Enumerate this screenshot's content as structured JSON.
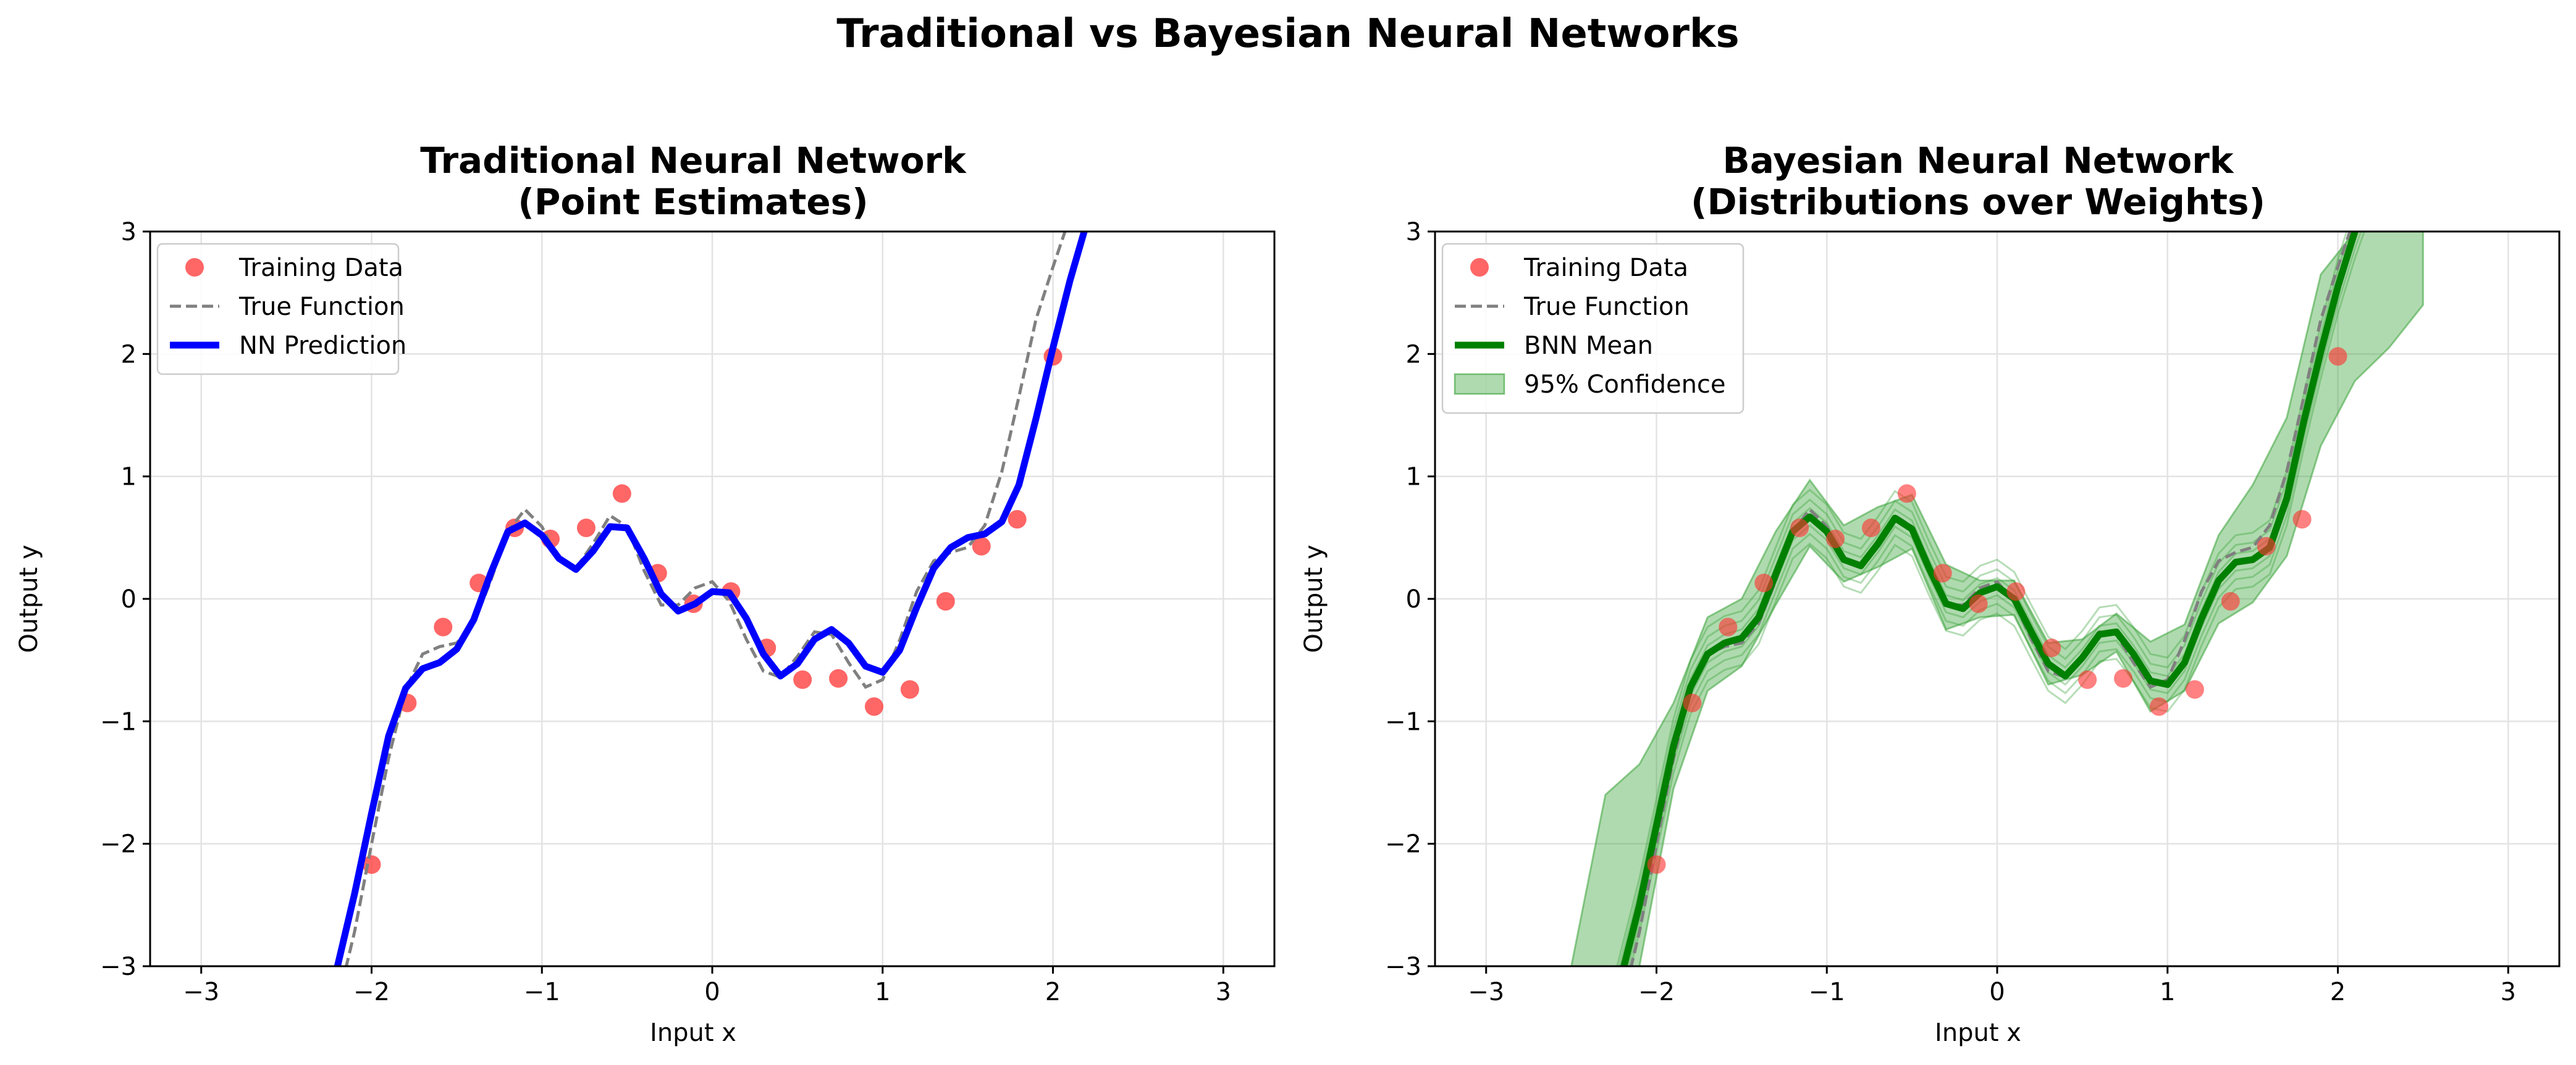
{
  "figure": {
    "title": "Traditional vs Bayesian Neural Networks"
  },
  "chart_data": [
    {
      "type": "line",
      "title": "Traditional Neural Network",
      "subtitle": "(Point Estimates)",
      "xlabel": "Input x",
      "ylabel": "Output y",
      "xlim": [
        -3.3,
        3.3
      ],
      "ylim": [
        -3,
        3
      ],
      "xticks": [
        -3,
        -2,
        -1,
        0,
        1,
        2,
        3
      ],
      "yticks": [
        -3,
        -2,
        -1,
        0,
        1,
        2,
        3
      ],
      "xtick_labels": [
        "−3",
        "−2",
        "−1",
        "0",
        "1",
        "2",
        "3"
      ],
      "ytick_labels": [
        "−3",
        "−2",
        "−1",
        "0",
        "1",
        "2",
        "3"
      ],
      "grid": true,
      "legend_position": "upper-left",
      "colors": {
        "data": "#ff3333",
        "true": "#808080",
        "prediction": "#0000ff"
      },
      "legend": [
        "Training Data",
        "True Function",
        "NN Prediction"
      ],
      "scatter": {
        "name": "Training Data",
        "x": [
          -2.0,
          -1.79,
          -1.58,
          -1.37,
          -1.16,
          -0.95,
          -0.74,
          -0.53,
          -0.32,
          -0.11,
          0.11,
          0.32,
          0.53,
          0.74,
          0.95,
          1.16,
          1.37,
          1.58,
          1.79,
          2.0
        ],
        "y": [
          -2.17,
          -0.85,
          -0.23,
          0.13,
          0.58,
          0.49,
          0.58,
          0.86,
          0.21,
          -0.04,
          0.06,
          -0.4,
          -0.66,
          -0.65,
          -0.88,
          -0.74,
          -0.02,
          0.43,
          0.65,
          1.98
        ]
      },
      "true_function": {
        "name": "True Function",
        "x": [
          -2.3,
          -2.2,
          -2.1,
          -2.0,
          -1.9,
          -1.8,
          -1.7,
          -1.6,
          -1.5,
          -1.4,
          -1.3,
          -1.2,
          -1.1,
          -1.0,
          -0.9,
          -0.8,
          -0.7,
          -0.6,
          -0.5,
          -0.4,
          -0.3,
          -0.2,
          -0.1,
          0.0,
          0.1,
          0.2,
          0.3,
          0.4,
          0.5,
          0.6,
          0.7,
          0.8,
          0.9,
          1.0,
          1.1,
          1.2,
          1.3,
          1.4,
          1.5,
          1.6,
          1.7,
          1.8,
          1.9,
          2.0,
          2.1,
          2.2,
          2.3
        ],
        "y": [
          -3.78,
          -3.3,
          -2.72,
          -2.0,
          -1.3,
          -0.74,
          -0.45,
          -0.39,
          -0.36,
          -0.2,
          0.15,
          0.55,
          0.73,
          0.59,
          0.31,
          0.25,
          0.45,
          0.68,
          0.59,
          0.23,
          -0.05,
          -0.05,
          0.09,
          0.14,
          -0.02,
          -0.33,
          -0.59,
          -0.64,
          -0.47,
          -0.27,
          -0.29,
          -0.52,
          -0.72,
          -0.66,
          -0.34,
          0.06,
          0.31,
          0.38,
          0.42,
          0.6,
          1.04,
          1.65,
          2.28,
          2.71,
          3.12,
          3.5,
          3.9
        ]
      },
      "prediction": {
        "name": "NN Prediction",
        "x": [
          -2.3,
          -2.2,
          -2.1,
          -2.0,
          -1.9,
          -1.8,
          -1.7,
          -1.6,
          -1.5,
          -1.4,
          -1.3,
          -1.2,
          -1.1,
          -1.0,
          -0.9,
          -0.8,
          -0.7,
          -0.6,
          -0.5,
          -0.4,
          -0.3,
          -0.2,
          -0.1,
          0.0,
          0.1,
          0.2,
          0.3,
          0.4,
          0.5,
          0.6,
          0.7,
          0.8,
          0.9,
          1.0,
          1.1,
          1.2,
          1.3,
          1.4,
          1.5,
          1.6,
          1.7,
          1.8,
          1.9,
          2.0,
          2.1,
          2.2,
          2.3
        ],
        "y": [
          -3.54,
          -3.0,
          -2.41,
          -1.75,
          -1.12,
          -0.73,
          -0.57,
          -0.52,
          -0.41,
          -0.17,
          0.21,
          0.55,
          0.62,
          0.52,
          0.33,
          0.24,
          0.39,
          0.59,
          0.58,
          0.33,
          0.04,
          -0.1,
          -0.04,
          0.06,
          0.05,
          -0.16,
          -0.45,
          -0.63,
          -0.53,
          -0.33,
          -0.25,
          -0.36,
          -0.55,
          -0.6,
          -0.42,
          -0.07,
          0.25,
          0.42,
          0.5,
          0.53,
          0.63,
          0.93,
          1.47,
          2.05,
          2.6,
          3.08,
          3.55
        ]
      }
    },
    {
      "type": "line",
      "title": "Bayesian Neural Network",
      "subtitle": "(Distributions over Weights)",
      "xlabel": "Input x",
      "ylabel": "Output y",
      "xlim": [
        -3.3,
        3.3
      ],
      "ylim": [
        -3,
        3
      ],
      "xticks": [
        -3,
        -2,
        -1,
        0,
        1,
        2,
        3
      ],
      "yticks": [
        -3,
        -2,
        -1,
        0,
        1,
        2,
        3
      ],
      "xtick_labels": [
        "−3",
        "−2",
        "−1",
        "0",
        "1",
        "2",
        "3"
      ],
      "ytick_labels": [
        "−3",
        "−2",
        "−1",
        "0",
        "1",
        "2",
        "3"
      ],
      "grid": true,
      "legend_position": "upper-left",
      "colors": {
        "data": "#ff3333",
        "true": "#808080",
        "mean": "#008000",
        "band": "#2e9e2e"
      },
      "legend": [
        "Training Data",
        "True Function",
        "BNN Mean",
        "95% Confidence"
      ],
      "scatter": {
        "name": "Training Data",
        "x": [
          -2.0,
          -1.79,
          -1.58,
          -1.37,
          -1.16,
          -0.95,
          -0.74,
          -0.53,
          -0.32,
          -0.11,
          0.11,
          0.32,
          0.53,
          0.74,
          0.95,
          1.16,
          1.37,
          1.58,
          1.79,
          2.0
        ],
        "y": [
          -2.17,
          -0.85,
          -0.23,
          0.13,
          0.58,
          0.49,
          0.58,
          0.86,
          0.21,
          -0.04,
          0.06,
          -0.4,
          -0.66,
          -0.65,
          -0.88,
          -0.74,
          -0.02,
          0.43,
          0.65,
          1.98
        ]
      },
      "true_function": {
        "name": "True Function",
        "x": [
          -2.3,
          -2.2,
          -2.1,
          -2.0,
          -1.9,
          -1.8,
          -1.7,
          -1.6,
          -1.5,
          -1.4,
          -1.3,
          -1.2,
          -1.1,
          -1.0,
          -0.9,
          -0.8,
          -0.7,
          -0.6,
          -0.5,
          -0.4,
          -0.3,
          -0.2,
          -0.1,
          0.0,
          0.1,
          0.2,
          0.3,
          0.4,
          0.5,
          0.6,
          0.7,
          0.8,
          0.9,
          1.0,
          1.1,
          1.2,
          1.3,
          1.4,
          1.5,
          1.6,
          1.7,
          1.8,
          1.9,
          2.0,
          2.1,
          2.2,
          2.3
        ],
        "y": [
          -3.78,
          -3.3,
          -2.72,
          -2.0,
          -1.3,
          -0.74,
          -0.45,
          -0.39,
          -0.36,
          -0.2,
          0.15,
          0.55,
          0.73,
          0.59,
          0.31,
          0.25,
          0.45,
          0.68,
          0.59,
          0.23,
          -0.05,
          -0.05,
          0.09,
          0.14,
          -0.02,
          -0.33,
          -0.59,
          -0.64,
          -0.47,
          -0.27,
          -0.29,
          -0.52,
          -0.72,
          -0.66,
          -0.34,
          0.06,
          0.31,
          0.38,
          0.42,
          0.6,
          1.04,
          1.65,
          2.28,
          2.71,
          3.12,
          3.5,
          3.9
        ]
      },
      "mean": {
        "name": "BNN Mean",
        "x": [
          -2.3,
          -2.2,
          -2.1,
          -2.0,
          -1.9,
          -1.8,
          -1.7,
          -1.6,
          -1.5,
          -1.4,
          -1.3,
          -1.2,
          -1.1,
          -1.0,
          -0.9,
          -0.8,
          -0.7,
          -0.6,
          -0.5,
          -0.4,
          -0.3,
          -0.2,
          -0.1,
          0.0,
          0.1,
          0.2,
          0.3,
          0.4,
          0.5,
          0.6,
          0.7,
          0.8,
          0.9,
          1.0,
          1.1,
          1.2,
          1.3,
          1.4,
          1.5,
          1.6,
          1.7,
          1.8,
          1.9,
          2.0,
          2.1,
          2.2,
          2.3
        ],
        "y": [
          -3.6,
          -3.05,
          -2.5,
          -1.85,
          -1.2,
          -0.72,
          -0.45,
          -0.36,
          -0.32,
          -0.15,
          0.2,
          0.55,
          0.67,
          0.55,
          0.32,
          0.27,
          0.45,
          0.66,
          0.57,
          0.25,
          -0.04,
          -0.08,
          0.05,
          0.1,
          0.0,
          -0.27,
          -0.53,
          -0.63,
          -0.48,
          -0.29,
          -0.27,
          -0.45,
          -0.67,
          -0.7,
          -0.52,
          -0.16,
          0.15,
          0.3,
          0.32,
          0.42,
          0.82,
          1.45,
          2.02,
          2.55,
          3.0,
          3.4,
          3.8
        ]
      },
      "confidence_95": {
        "name": "95% Confidence",
        "x": [
          -2.5,
          -2.3,
          -2.1,
          -1.9,
          -1.7,
          -1.5,
          -1.3,
          -1.1,
          -0.9,
          -0.7,
          -0.5,
          -0.3,
          -0.1,
          0.1,
          0.3,
          0.5,
          0.7,
          0.9,
          1.1,
          1.3,
          1.5,
          1.7,
          1.9,
          2.1,
          2.3,
          2.5
        ],
        "lower": [
          -3.0,
          -3.0,
          -3.0,
          -1.55,
          -0.75,
          -0.55,
          -0.05,
          0.43,
          0.14,
          0.26,
          0.41,
          -0.25,
          -0.15,
          -0.13,
          -0.7,
          -0.62,
          -0.43,
          -0.92,
          -0.75,
          -0.2,
          -0.03,
          0.35,
          1.25,
          1.78,
          2.05,
          2.4
        ],
        "upper": [
          -3.0,
          -1.6,
          -1.35,
          -0.85,
          -0.15,
          0.0,
          0.55,
          0.97,
          0.6,
          0.75,
          0.85,
          0.28,
          0.15,
          0.15,
          -0.36,
          -0.33,
          -0.12,
          -0.35,
          -0.21,
          0.52,
          0.93,
          1.48,
          2.65,
          3.0,
          3.0,
          3.0
        ]
      }
    }
  ]
}
